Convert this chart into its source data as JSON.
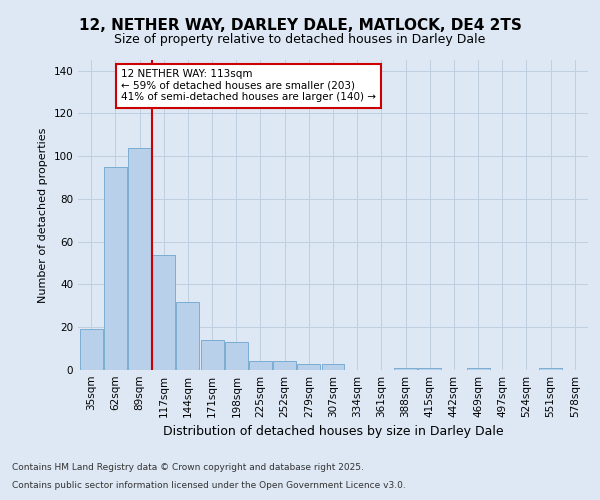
{
  "title_line1": "12, NETHER WAY, DARLEY DALE, MATLOCK, DE4 2TS",
  "title_line2": "Size of property relative to detached houses in Darley Dale",
  "xlabel": "Distribution of detached houses by size in Darley Dale",
  "ylabel": "Number of detached properties",
  "categories": [
    "35sqm",
    "62sqm",
    "89sqm",
    "117sqm",
    "144sqm",
    "171sqm",
    "198sqm",
    "225sqm",
    "252sqm",
    "279sqm",
    "307sqm",
    "334sqm",
    "361sqm",
    "388sqm",
    "415sqm",
    "442sqm",
    "469sqm",
    "497sqm",
    "524sqm",
    "551sqm",
    "578sqm"
  ],
  "values": [
    19,
    95,
    104,
    54,
    32,
    14,
    13,
    4,
    4,
    3,
    3,
    0,
    0,
    1,
    1,
    0,
    1,
    0,
    0,
    1,
    0
  ],
  "bar_color": "#b8d0ea",
  "bar_edge_color": "#7aadd4",
  "background_color": "#dde8f4",
  "vline_x_index": 3.0,
  "vline_color": "#cc0000",
  "annotation_text": "12 NETHER WAY: 113sqm\n← 59% of detached houses are smaller (203)\n41% of semi-detached houses are larger (140) →",
  "annotation_box_color": "white",
  "annotation_box_edge_color": "#cc0000",
  "ylim": [
    0,
    145
  ],
  "yticks": [
    0,
    20,
    40,
    60,
    80,
    100,
    120,
    140
  ],
  "footnote_line1": "Contains HM Land Registry data © Crown copyright and database right 2025.",
  "footnote_line2": "Contains public sector information licensed under the Open Government Licence v3.0.",
  "grid_color": "#c0cfe0",
  "title1_fontsize": 11,
  "title2_fontsize": 9,
  "xlabel_fontsize": 9,
  "ylabel_fontsize": 8,
  "tick_fontsize": 7.5,
  "footnote_fontsize": 6.5
}
